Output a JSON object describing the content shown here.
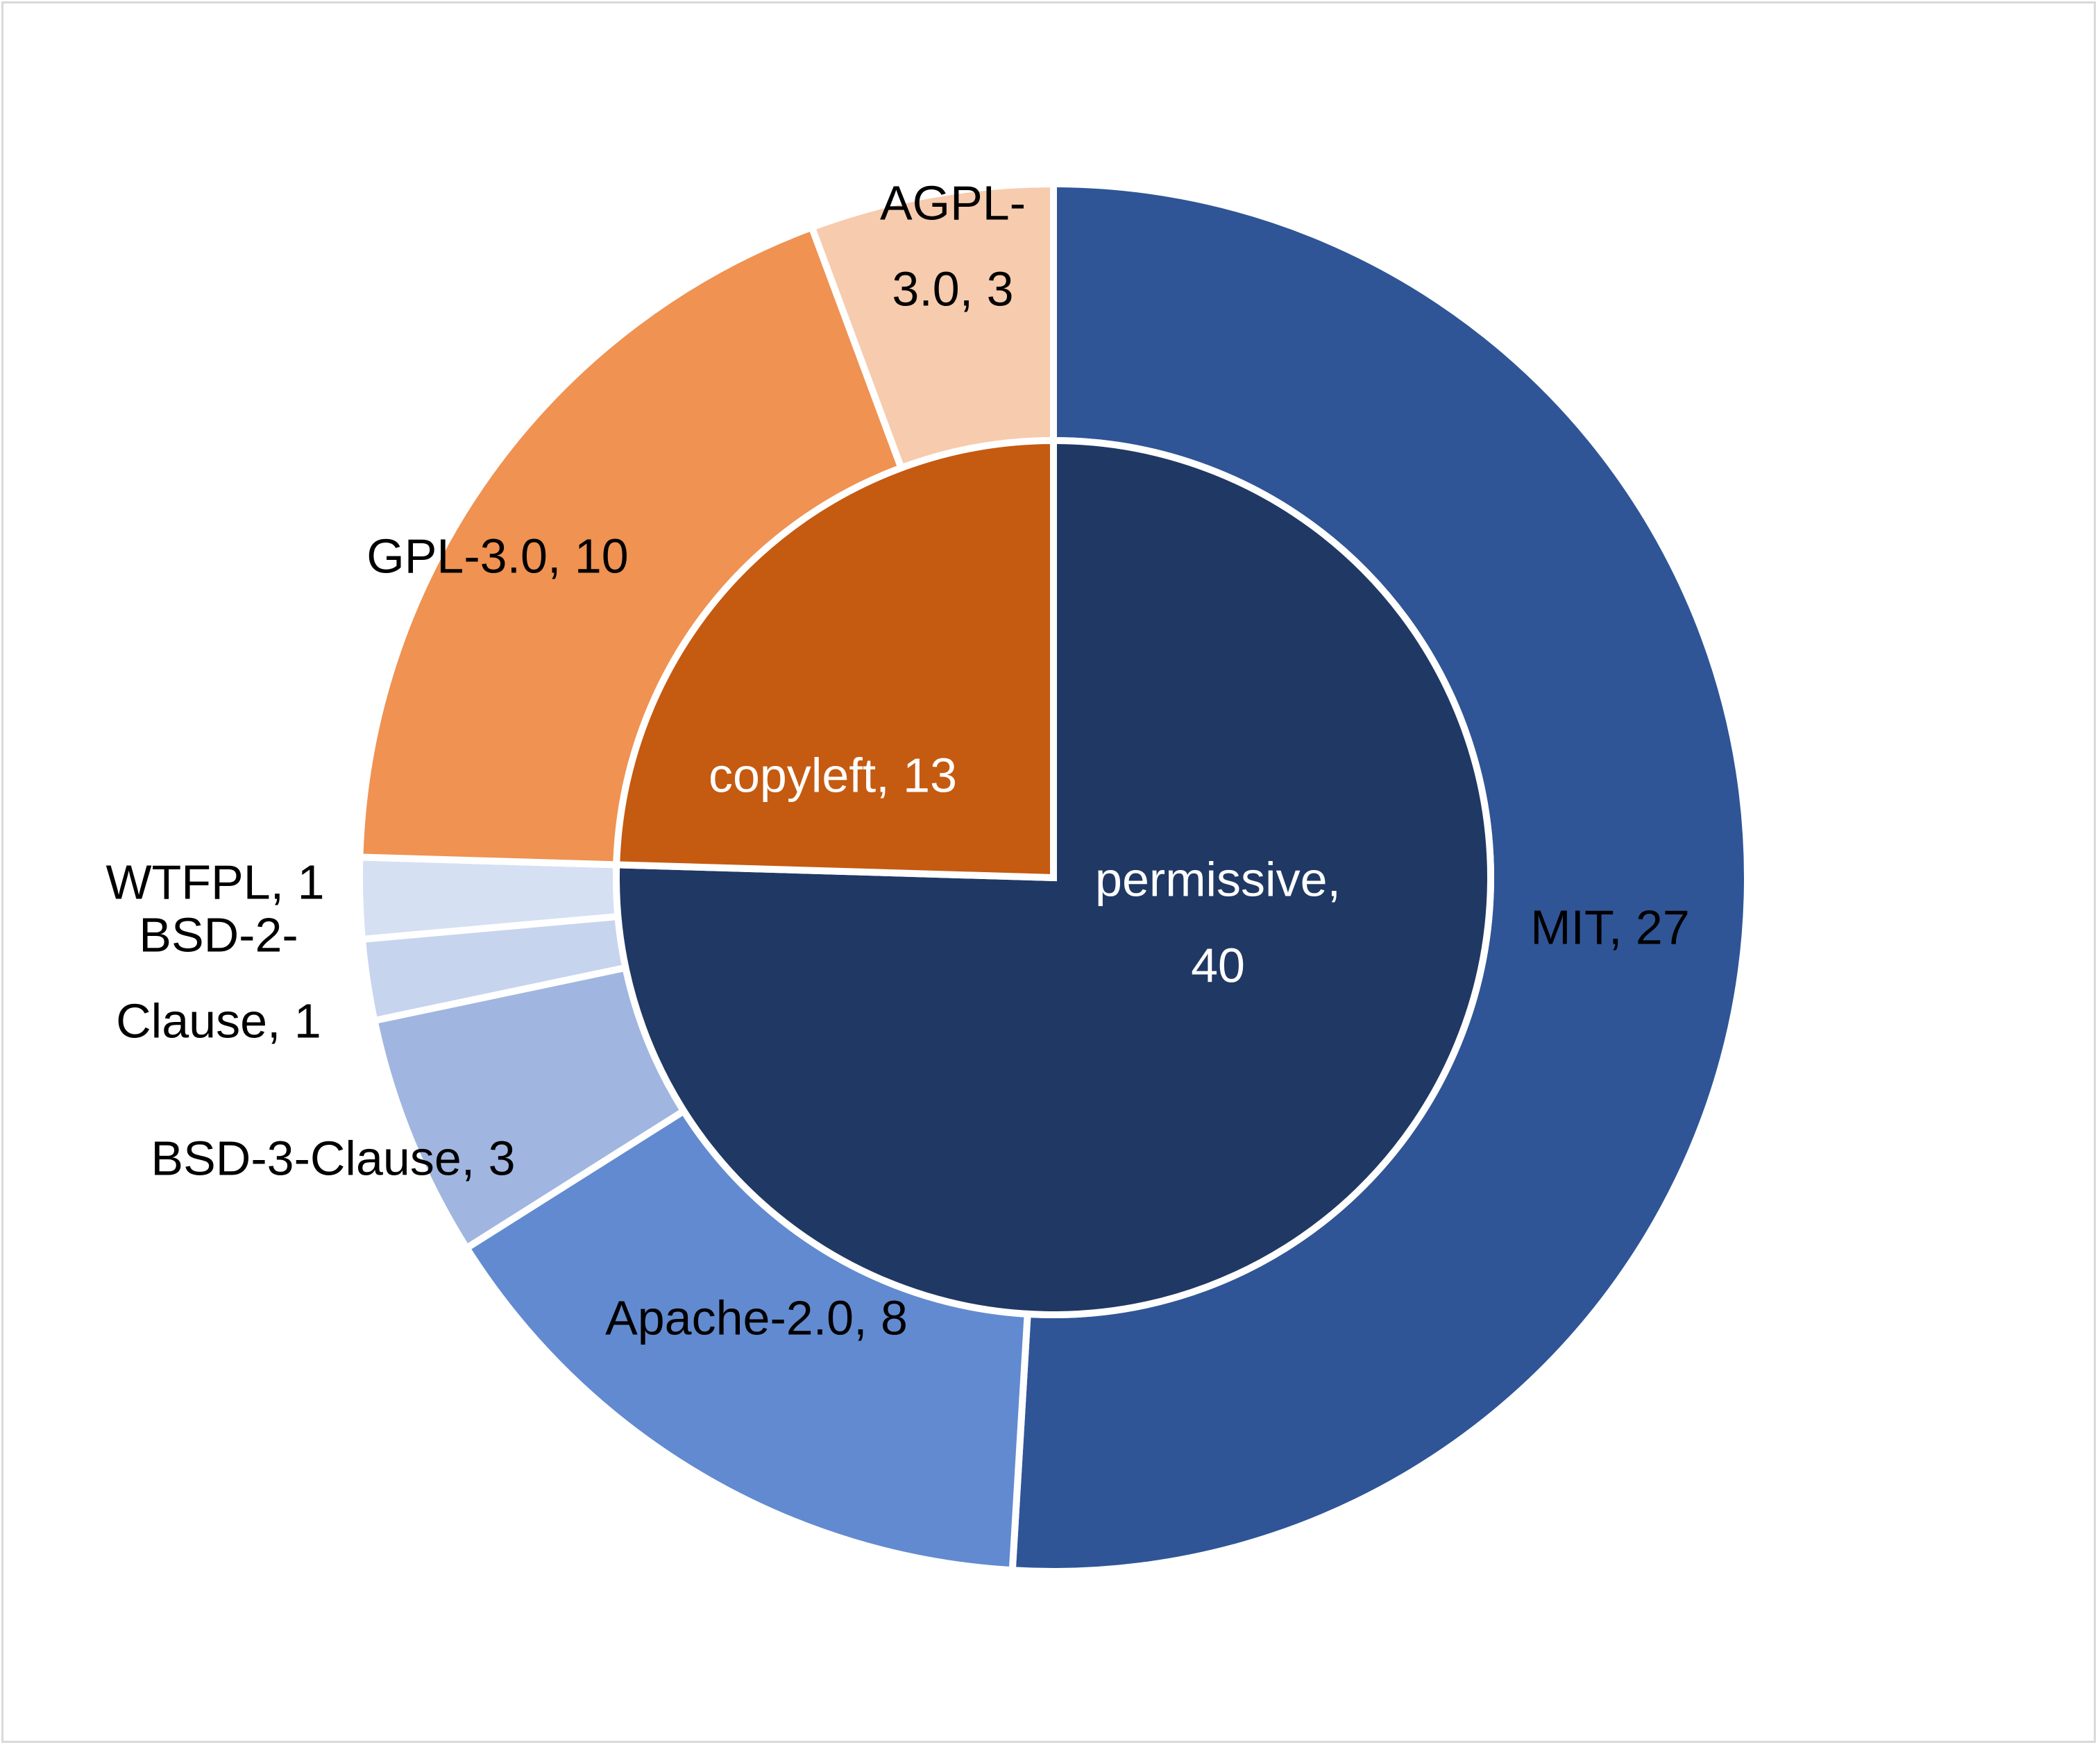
{
  "chart_data": {
    "type": "sunburst",
    "title": "",
    "inner_ring": [
      {
        "name": "permissive",
        "value": 40,
        "color": "#203864",
        "label_color": "#ffffff"
      },
      {
        "name": "copyleft",
        "value": 13,
        "color": "#C55A11",
        "label_color": "#ffffff"
      }
    ],
    "outer_ring": [
      {
        "name": "MIT",
        "value": 27,
        "parent": "permissive",
        "color": "#2F5597"
      },
      {
        "name": "Apache-2.0",
        "value": 8,
        "parent": "permissive",
        "color": "#628AD0"
      },
      {
        "name": "BSD-3-Clause",
        "value": 3,
        "parent": "permissive",
        "color": "#A0B6E0"
      },
      {
        "name": "BSD-2-Clause",
        "value": 1,
        "parent": "permissive",
        "color": "#C7D4EE"
      },
      {
        "name": "WTFPL",
        "value": 1,
        "parent": "permissive",
        "color": "#D6E0F3"
      },
      {
        "name": "GPL-3.0",
        "value": 10,
        "parent": "copyleft",
        "color": "#EF9252"
      },
      {
        "name": "AGPL-3.0",
        "value": 3,
        "parent": "copyleft",
        "color": "#F7CBAD"
      }
    ],
    "labels": {
      "inner": [
        {
          "name": "permissive",
          "lines": [
            "permissive,",
            "40"
          ]
        },
        {
          "name": "copyleft",
          "lines": [
            "copyleft, 13"
          ]
        }
      ],
      "outer": [
        {
          "name": "MIT",
          "lines": [
            "MIT, 27"
          ]
        },
        {
          "name": "Apache-2.0",
          "lines": [
            "Apache-2.0, 8"
          ]
        },
        {
          "name": "BSD-3-Clause",
          "lines": [
            "BSD-3-Clause, 3"
          ]
        },
        {
          "name": "BSD-2-Clause",
          "lines": [
            "BSD-2-",
            "Clause, 1"
          ]
        },
        {
          "name": "WTFPL",
          "lines": [
            "WTFPL, 1"
          ]
        },
        {
          "name": "GPL-3.0",
          "lines": [
            "GPL-3.0, 10"
          ]
        },
        {
          "name": "AGPL-3.0",
          "lines": [
            "AGPL-",
            "3.0, 3"
          ]
        }
      ]
    },
    "legend": "none",
    "grid": false
  }
}
